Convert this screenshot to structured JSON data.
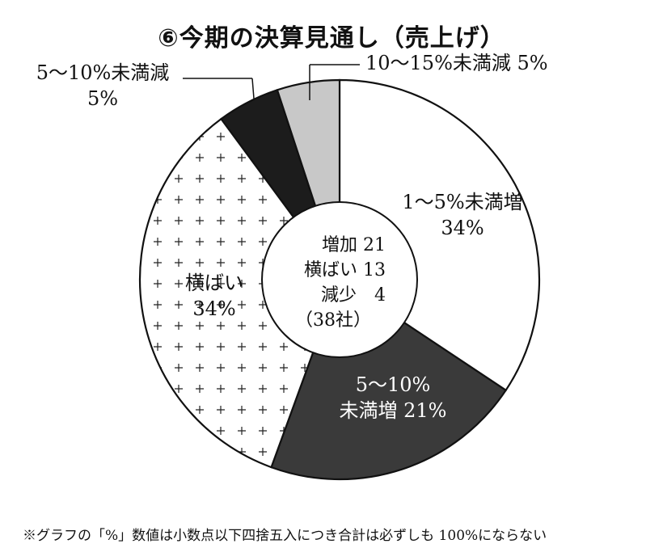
{
  "title": "⑥今期の決算見通し（売上げ）",
  "chart_data": {
    "type": "pie",
    "slices": [
      {
        "label": "1〜5%未満増",
        "value": 34,
        "pct_text": "34%",
        "color": "#ffffff",
        "pattern": "none"
      },
      {
        "label": "5〜10%未満増",
        "value": 21,
        "pct_text": "21%",
        "color": "#3a3a3a",
        "pattern": "none"
      },
      {
        "label": "横ばい",
        "value": 34,
        "pct_text": "34%",
        "color": "#ffffff",
        "pattern": "plus"
      },
      {
        "label": "5〜10%未満減",
        "value": 5,
        "pct_text": "5%",
        "color": "#1c1c1c",
        "pattern": "none"
      },
      {
        "label": "10〜15%未満減",
        "value": 5,
        "pct_text": "5%",
        "color": "#c8c8c8",
        "pattern": "none"
      }
    ],
    "labels": {
      "s0_line1": "1〜5%未満増",
      "s0_line2": "34%",
      "s1_line1": "5〜10%",
      "s1_line2": "未満増 21%",
      "s2_line1": "横ばい",
      "s2_line2": "34%",
      "s3_line1": "5〜10%未満減",
      "s3_line2": "5%",
      "s4_line1": "10〜15%未満減 5%"
    },
    "center": {
      "line1": "増加 21",
      "line2": "横ばい 13",
      "line3": "減少　4",
      "line4": "（38社）"
    }
  },
  "footnote": "※グラフの「%」数値は小数点以下四捨五入につき合計は必ずしも 100%にならない"
}
